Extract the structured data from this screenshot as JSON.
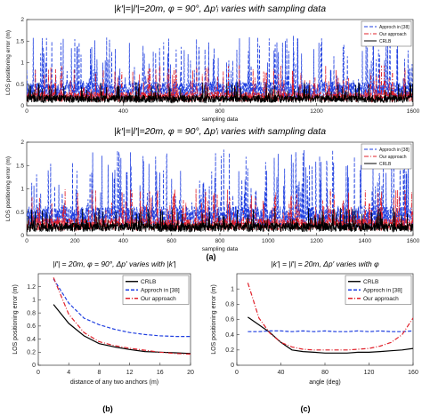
{
  "page": {
    "caption_a": "(a)",
    "caption_b": "(b)",
    "caption_c": "(c)"
  },
  "colors": {
    "approach": "#1f3fe0",
    "ours": "#e0202a",
    "crlb": "#000000",
    "axis": "#333333"
  },
  "chart_data": [
    {
      "id": "a1",
      "type": "line",
      "title": "|k′|=|l′|=20m, φ = 90°, Δp′ᵢ varies with sampling data",
      "xlabel": "sampling data",
      "ylabel": "LOS positioning error (m)",
      "xlim": [
        0,
        1600
      ],
      "ylim": [
        0,
        2
      ],
      "xticks": [
        "0",
        "400",
        "800",
        "1200",
        "1600"
      ],
      "yticks": [
        "0",
        "0.5",
        "1",
        "1.5",
        "2"
      ],
      "legend_position": "top-right",
      "series": [
        {
          "name": "Approch in [38]",
          "style": "dashed",
          "color_key": "approach",
          "baseline": 0.45,
          "spike_max": 1.65,
          "spike_rate": 0.1,
          "samples": 1600
        },
        {
          "name": "Our approach",
          "style": "dashdot",
          "color_key": "ours",
          "baseline": 0.26,
          "spike_max": 0.95,
          "spike_rate": 0.08,
          "samples": 1600
        },
        {
          "name": "CRLB",
          "style": "solid",
          "color_key": "crlb",
          "baseline": 0.2,
          "spike_max": 0.55,
          "spike_rate": 0.06,
          "samples": 1600
        }
      ]
    },
    {
      "id": "a2",
      "type": "line",
      "title": "|k′|=|l′|=20m, φ = 90°, Δp′ᵢ varies with sampling data",
      "xlabel": "sampling data",
      "ylabel": "LOS positioning error (m)",
      "xlim": [
        0,
        1600
      ],
      "ylim": [
        0,
        2
      ],
      "xticks": [
        "0",
        "200",
        "400",
        "600",
        "800",
        "1000",
        "1200",
        "1400",
        "1600"
      ],
      "yticks": [
        "0",
        "0.5",
        "1",
        "1.5",
        "2"
      ],
      "legend_position": "top-right",
      "series": [
        {
          "name": "Approch in [38]",
          "style": "dashed",
          "color_key": "approach",
          "baseline": 0.5,
          "spike_max": 1.85,
          "spike_rate": 0.1,
          "samples": 1600
        },
        {
          "name": "Our approach",
          "style": "dashdot",
          "color_key": "ours",
          "baseline": 0.3,
          "spike_max": 1.0,
          "spike_rate": 0.08,
          "samples": 1600
        },
        {
          "name": "CRLB",
          "style": "solid",
          "color_key": "crlb",
          "baseline": 0.22,
          "spike_max": 0.6,
          "spike_rate": 0.06,
          "samples": 1600
        }
      ]
    },
    {
      "id": "b",
      "type": "line",
      "title": "|l′| = 20m, φ = 90°, Δp′ varies with |k′|",
      "xlabel": "distance of any two anchors (m)",
      "ylabel": "LOS positioning error (m)",
      "xlim": [
        0,
        20
      ],
      "ylim": [
        0,
        1.4
      ],
      "xticks": [
        "0",
        "4",
        "8",
        "12",
        "16",
        "20"
      ],
      "yticks": [
        "0",
        "0.2",
        "0.4",
        "0.6",
        "0.8",
        "1",
        "1.2"
      ],
      "legend_position": "top-right",
      "series": [
        {
          "name": "CRLB",
          "style": "solid",
          "color_key": "crlb",
          "x": [
            2,
            4,
            6,
            8,
            10,
            12,
            14,
            16,
            18,
            20
          ],
          "y": [
            0.93,
            0.64,
            0.45,
            0.33,
            0.28,
            0.24,
            0.21,
            0.2,
            0.19,
            0.18
          ]
        },
        {
          "name": "Approch in [38]",
          "style": "dashed",
          "color_key": "approach",
          "x": [
            2,
            4,
            6,
            8,
            10,
            12,
            14,
            16,
            18,
            20
          ],
          "y": [
            1.32,
            0.95,
            0.72,
            0.62,
            0.55,
            0.5,
            0.47,
            0.45,
            0.44,
            0.44
          ]
        },
        {
          "name": "Our approach",
          "style": "dashdot",
          "color_key": "ours",
          "x": [
            2,
            4,
            6,
            8,
            10,
            12,
            14,
            16,
            18,
            20
          ],
          "y": [
            1.34,
            0.78,
            0.5,
            0.36,
            0.3,
            0.26,
            0.23,
            0.2,
            0.18,
            0.17
          ]
        }
      ]
    },
    {
      "id": "c",
      "type": "line",
      "title": "|k′| = |l′| = 20m, Δp′ varies with φ",
      "xlabel": "angle (deg)",
      "ylabel": "LOS positioning error (m)",
      "xlim": [
        0,
        160
      ],
      "ylim": [
        0,
        1.2
      ],
      "xticks": [
        "0",
        "40",
        "80",
        "120",
        "160"
      ],
      "yticks": [
        "0",
        "0.2",
        "0.4",
        "0.6",
        "0.8",
        "1"
      ],
      "legend_position": "top-right",
      "series": [
        {
          "name": "CRLB",
          "style": "solid",
          "color_key": "crlb",
          "x": [
            10,
            20,
            30,
            40,
            50,
            60,
            70,
            80,
            90,
            100,
            110,
            120,
            130,
            140,
            150,
            160
          ],
          "y": [
            0.63,
            0.53,
            0.43,
            0.3,
            0.2,
            0.18,
            0.17,
            0.16,
            0.16,
            0.16,
            0.17,
            0.17,
            0.18,
            0.19,
            0.2,
            0.22
          ]
        },
        {
          "name": "Approch in [38]",
          "style": "dashed",
          "color_key": "approach",
          "x": [
            10,
            20,
            30,
            40,
            50,
            60,
            70,
            80,
            90,
            100,
            110,
            120,
            130,
            140,
            150,
            160
          ],
          "y": [
            0.44,
            0.44,
            0.45,
            0.45,
            0.44,
            0.45,
            0.44,
            0.45,
            0.44,
            0.44,
            0.45,
            0.44,
            0.45,
            0.44,
            0.44,
            0.45
          ]
        },
        {
          "name": "Our approach",
          "style": "dashdot",
          "color_key": "ours",
          "x": [
            10,
            20,
            30,
            40,
            50,
            60,
            70,
            80,
            90,
            100,
            110,
            120,
            130,
            140,
            150,
            160
          ],
          "y": [
            1.08,
            0.62,
            0.42,
            0.3,
            0.24,
            0.21,
            0.2,
            0.2,
            0.2,
            0.2,
            0.21,
            0.22,
            0.25,
            0.3,
            0.4,
            0.62
          ]
        }
      ]
    }
  ]
}
